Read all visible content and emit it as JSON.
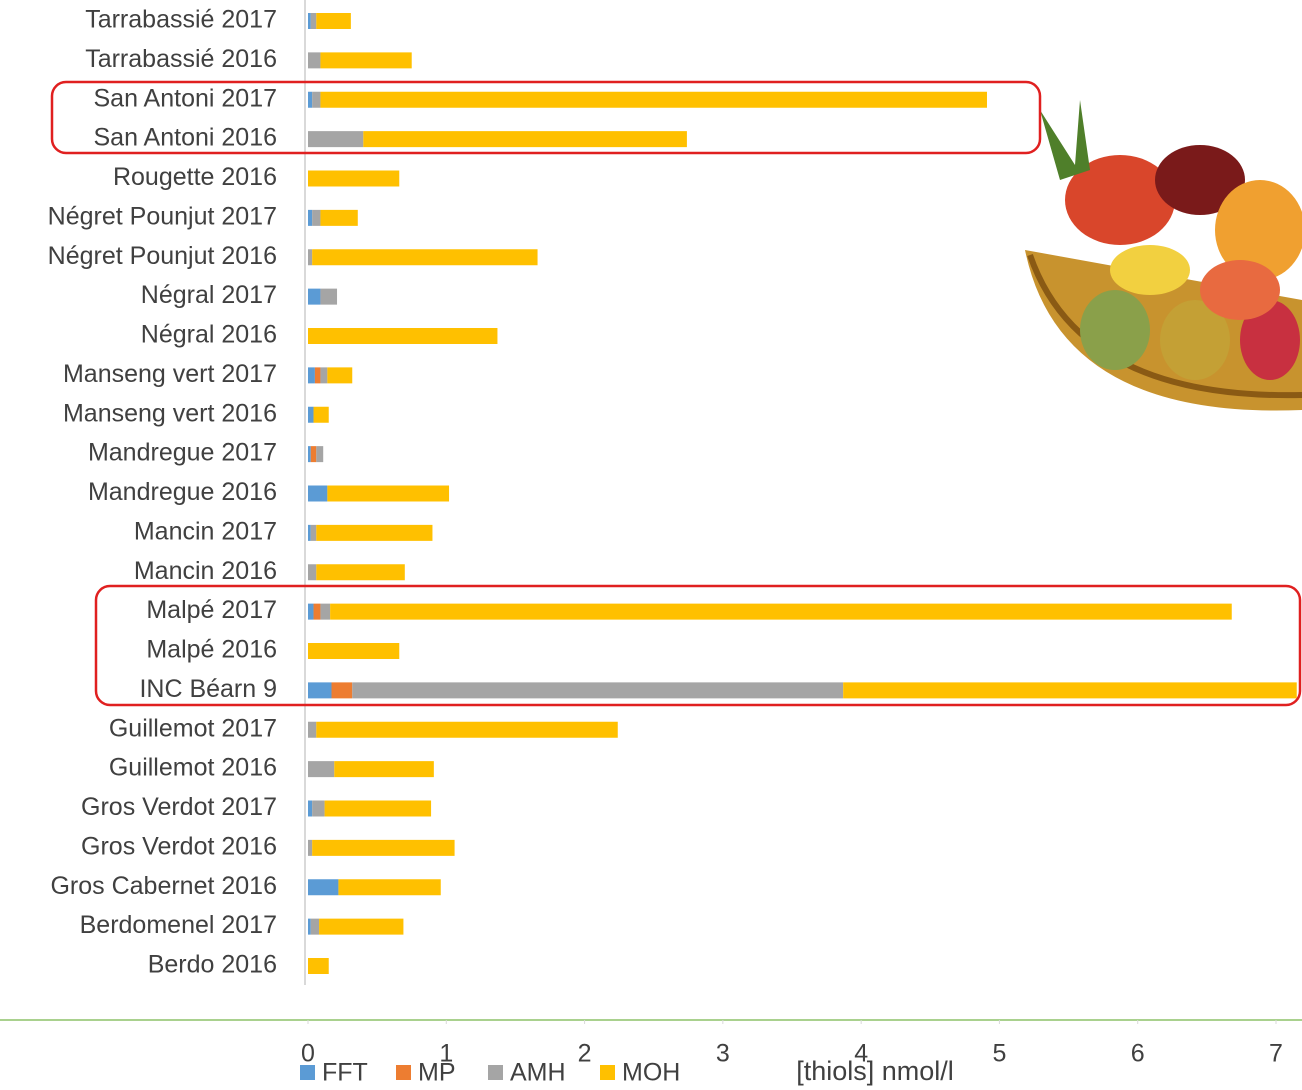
{
  "chart_data": {
    "type": "stacked-barh",
    "categories": [
      "Tarrabassié 2017",
      "Tarrabassié 2016",
      "San Antoni 2017",
      "San Antoni 2016",
      "Rougette 2016",
      "Négret Pounjut 2017",
      "Négret Pounjut 2016",
      "Négral 2017",
      "Négral 2016",
      "Manseng vert 2017",
      "Manseng vert 2016",
      "Mandregue 2017",
      "Mandregue 2016",
      "Mancin 2017",
      "Mancin 2016",
      "Malpé 2017",
      "Malpé 2016",
      "INC Béarn 9",
      "Guillemot 2017",
      "Guillemot 2016",
      "Gros Verdot 2017",
      "Gros Verdot 2016",
      "Gros Cabernet 2016",
      "Berdomenel 2017",
      "Berdo 2016"
    ],
    "series": [
      {
        "name": "FFT",
        "color": "#5b9bd5",
        "values": [
          0.02,
          0,
          0.03,
          0,
          0,
          0.03,
          0,
          0.09,
          0,
          0.05,
          0.04,
          0.02,
          0.14,
          0.02,
          0,
          0.04,
          0,
          0.17,
          0,
          0,
          0.03,
          0,
          0.22,
          0.02,
          0
        ]
      },
      {
        "name": "MP",
        "color": "#ed7d31",
        "values": [
          0,
          0,
          0,
          0,
          0,
          0,
          0,
          0,
          0,
          0.04,
          0,
          0.04,
          0,
          0,
          0,
          0.05,
          0,
          0.15,
          0,
          0,
          0,
          0,
          0,
          0,
          0
        ]
      },
      {
        "name": "AMH",
        "color": "#a5a5a5",
        "values": [
          0.04,
          0.09,
          0.06,
          0.4,
          0,
          0.06,
          0.03,
          0.12,
          0,
          0.05,
          0,
          0.05,
          0,
          0.04,
          0.06,
          0.07,
          0,
          3.55,
          0.06,
          0.19,
          0.09,
          0.03,
          0,
          0.06,
          0
        ]
      },
      {
        "name": "MOH",
        "color": "#ffc000",
        "values": [
          0.25,
          0.66,
          4.82,
          2.34,
          0.66,
          0.27,
          1.63,
          0,
          1.37,
          0.18,
          0.11,
          0,
          0.88,
          0.84,
          0.64,
          6.52,
          0.66,
          3.28,
          2.18,
          0.72,
          0.77,
          1.03,
          0.74,
          0.61,
          0.15
        ]
      }
    ],
    "xlabel": "[thiols] nmol/l",
    "xlim": [
      0,
      7
    ],
    "xticks": [
      0,
      1,
      2,
      3,
      4,
      5,
      6,
      7
    ]
  }
}
